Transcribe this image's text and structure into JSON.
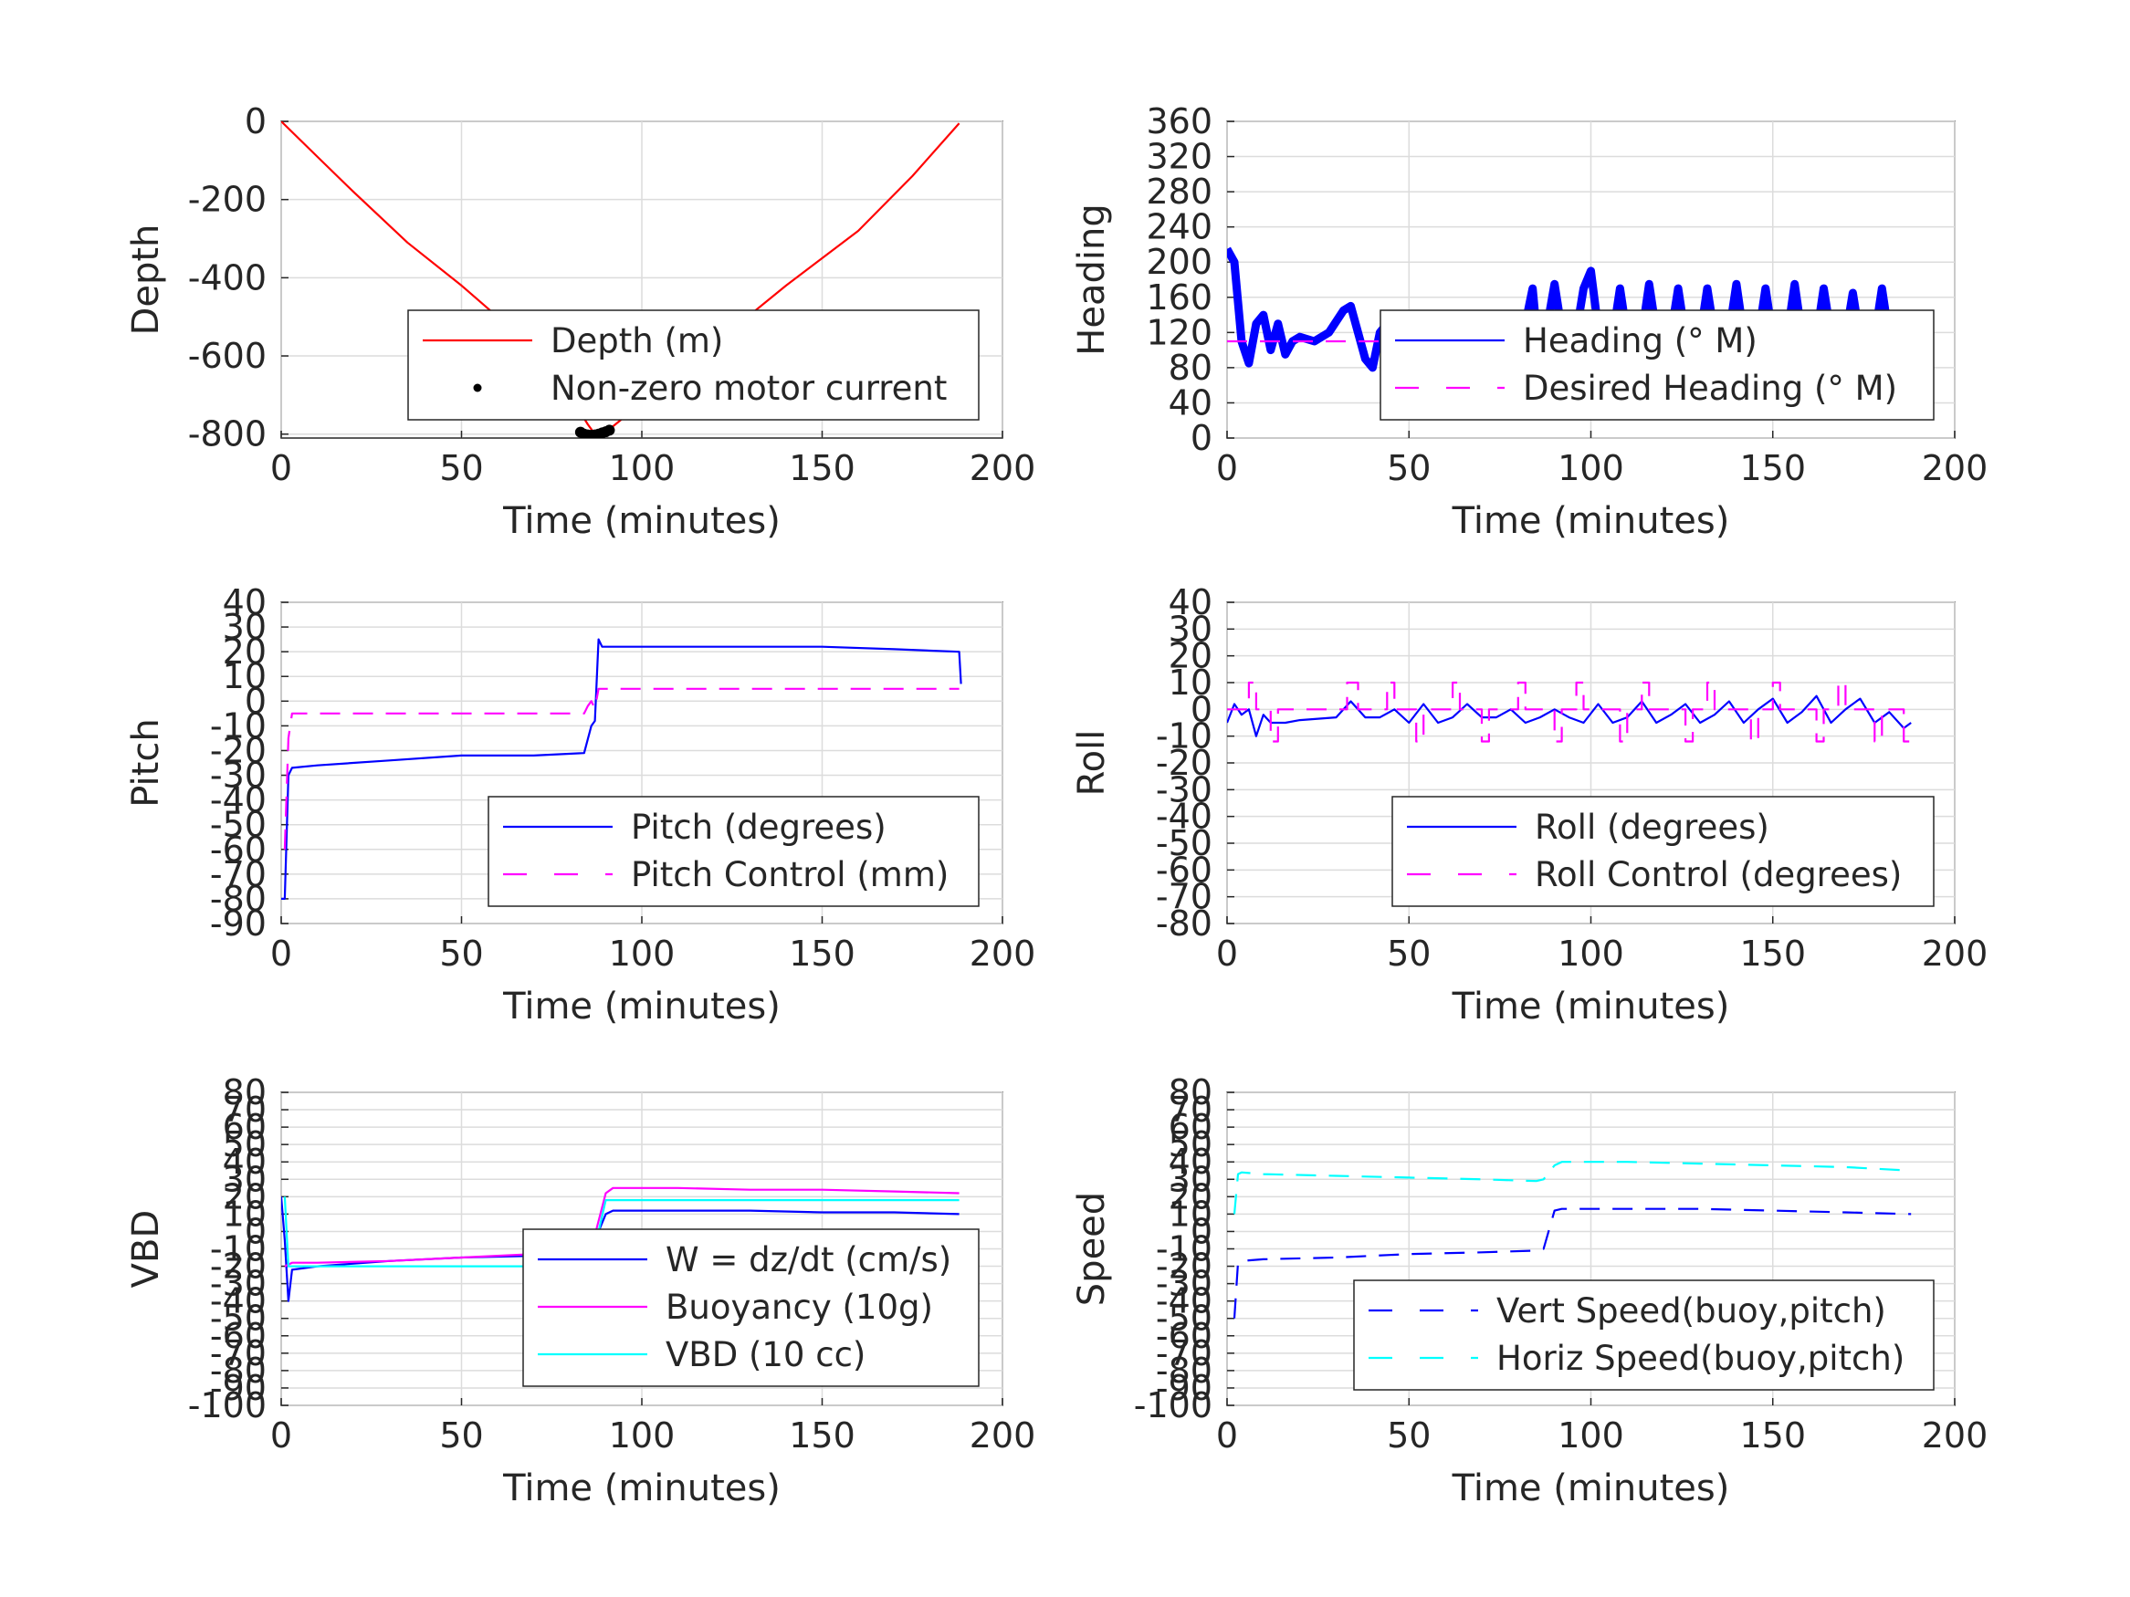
{
  "chart_data": [
    {
      "id": "depth",
      "type": "line",
      "xlabel": "Time (minutes)",
      "ylabel": "Depth",
      "xlim": [
        0,
        200
      ],
      "ylim": [
        -810,
        0
      ],
      "xticks": [
        0,
        50,
        100,
        150,
        200
      ],
      "yticks": [
        0,
        -200,
        -400,
        -600,
        -800
      ],
      "grid": true,
      "legend_position": "lower-right",
      "series": [
        {
          "name": "Depth (m)",
          "style": "solid",
          "color": "#ff0000",
          "x": [
            0,
            10,
            20,
            35,
            50,
            60,
            70,
            80,
            85,
            87,
            90,
            100,
            110,
            120,
            140,
            160,
            175,
            188
          ],
          "y": [
            0,
            -90,
            -180,
            -310,
            -420,
            -500,
            -590,
            -700,
            -775,
            -800,
            -795,
            -720,
            -650,
            -570,
            -420,
            -280,
            -140,
            -5
          ]
        },
        {
          "name": "Non-zero motor current",
          "style": "dots",
          "color": "#000000",
          "x": [
            83,
            84,
            85,
            86,
            87,
            88,
            89,
            90,
            91
          ],
          "y": [
            -795,
            -800,
            -802,
            -803,
            -802,
            -800,
            -797,
            -794,
            -790
          ]
        }
      ]
    },
    {
      "id": "heading",
      "type": "line",
      "xlabel": "Time (minutes)",
      "ylabel": "Heading",
      "xlim": [
        0,
        200
      ],
      "ylim": [
        0,
        360
      ],
      "xticks": [
        0,
        50,
        100,
        150,
        200
      ],
      "yticks": [
        0,
        40,
        80,
        120,
        160,
        200,
        240,
        280,
        320,
        360
      ],
      "grid": true,
      "legend_position": "center-right",
      "series": [
        {
          "name": "Heading (° M)",
          "style": "thick",
          "color": "#0000ff",
          "x": [
            0,
            2,
            4,
            6,
            8,
            10,
            12,
            14,
            16,
            18,
            20,
            24,
            28,
            32,
            34,
            38,
            40,
            42,
            44,
            48,
            52,
            54,
            58,
            62,
            64,
            66,
            68,
            72,
            76,
            80,
            84,
            86,
            90,
            94,
            98,
            100,
            104,
            108,
            112,
            116,
            120,
            124,
            128,
            132,
            136,
            140,
            144,
            148,
            152,
            156,
            160,
            164,
            168,
            172,
            176,
            180,
            184,
            188
          ],
          "y": [
            215,
            200,
            110,
            85,
            130,
            140,
            100,
            130,
            95,
            110,
            115,
            110,
            120,
            145,
            150,
            90,
            80,
            120,
            130,
            135,
            85,
            120,
            130,
            140,
            85,
            135,
            140,
            80,
            130,
            90,
            170,
            80,
            175,
            70,
            170,
            190,
            60,
            170,
            60,
            175,
            65,
            170,
            60,
            170,
            65,
            175,
            60,
            170,
            60,
            175,
            60,
            170,
            65,
            165,
            60,
            170,
            60,
            65
          ]
        },
        {
          "name": "Desired Heading (° M)",
          "style": "dashed",
          "color": "#ff00ff",
          "x": [
            0,
            188
          ],
          "y": [
            110,
            110
          ]
        }
      ]
    },
    {
      "id": "pitch",
      "type": "line",
      "xlabel": "Time (minutes)",
      "ylabel": "Pitch",
      "xlim": [
        0,
        200
      ],
      "ylim": [
        -90,
        40
      ],
      "xticks": [
        0,
        50,
        100,
        150,
        200
      ],
      "yticks": [
        -90,
        -80,
        -70,
        -60,
        -50,
        -40,
        -30,
        -20,
        -10,
        0,
        10,
        20,
        30,
        40
      ],
      "grid": true,
      "legend_position": "lower-right",
      "series": [
        {
          "name": "Pitch (degrees)",
          "style": "solid",
          "color": "#0000ff",
          "x": [
            0,
            1,
            2,
            3,
            10,
            30,
            50,
            70,
            84,
            86,
            87,
            88,
            89,
            90,
            110,
            130,
            150,
            170,
            188,
            188.5
          ],
          "y": [
            -80,
            -80,
            -30,
            -27,
            -26,
            -24,
            -22,
            -22,
            -21,
            -10,
            -8,
            25,
            22,
            22,
            22,
            22,
            22,
            21,
            20,
            7
          ]
        },
        {
          "name": "Pitch Control (mm)",
          "style": "dashed",
          "color": "#ff00ff",
          "x": [
            1,
            2,
            3,
            84,
            85,
            86,
            87,
            88,
            188
          ],
          "y": [
            -60,
            -15,
            -5,
            -5,
            -2,
            0,
            -3,
            5,
            5
          ]
        }
      ]
    },
    {
      "id": "roll",
      "type": "line",
      "xlabel": "Time (minutes)",
      "ylabel": "Roll",
      "xlim": [
        0,
        200
      ],
      "ylim": [
        -80,
        40
      ],
      "xticks": [
        0,
        50,
        100,
        150,
        200
      ],
      "yticks": [
        -80,
        -70,
        -60,
        -50,
        -40,
        -30,
        -20,
        -10,
        0,
        10,
        20,
        30,
        40
      ],
      "grid": true,
      "legend_position": "lower-right",
      "series": [
        {
          "name": "Roll (degrees)",
          "style": "solid",
          "color": "#0000ff",
          "x": [
            0,
            2,
            4,
            6,
            8,
            10,
            12,
            16,
            20,
            30,
            34,
            38,
            42,
            46,
            50,
            54,
            58,
            62,
            66,
            70,
            74,
            78,
            82,
            86,
            90,
            94,
            98,
            102,
            106,
            110,
            114,
            118,
            122,
            126,
            130,
            134,
            138,
            142,
            146,
            150,
            154,
            158,
            162,
            166,
            170,
            174,
            178,
            182,
            186,
            188
          ],
          "y": [
            -5,
            2,
            -2,
            0,
            -10,
            -2,
            -5,
            -5,
            -4,
            -3,
            3,
            -3,
            -3,
            0,
            -5,
            2,
            -5,
            -3,
            2,
            -3,
            -3,
            0,
            -5,
            -3,
            0,
            -3,
            -5,
            2,
            -5,
            -3,
            3,
            -5,
            -2,
            2,
            -5,
            -2,
            3,
            -5,
            0,
            4,
            -5,
            -1,
            5,
            -5,
            0,
            4,
            -5,
            -1,
            -7,
            -5
          ]
        },
        {
          "name": "Roll Control (degrees)",
          "style": "dashed",
          "color": "#ff00ff",
          "x": [
            0,
            6,
            6,
            8,
            8,
            12,
            12,
            14,
            14,
            33,
            33,
            36,
            36,
            44,
            44,
            46,
            46,
            52,
            52,
            54,
            54,
            62,
            62,
            64,
            64,
            70,
            70,
            72,
            72,
            80,
            80,
            82,
            82,
            90,
            90,
            92,
            92,
            96,
            96,
            98,
            98,
            108,
            108,
            110,
            110,
            114,
            114,
            116,
            116,
            126,
            126,
            128,
            128,
            132,
            132,
            134,
            134,
            144,
            144,
            146,
            146,
            150,
            150,
            152,
            152,
            162,
            162,
            164,
            164,
            168,
            168,
            170,
            170,
            178,
            178,
            180,
            180,
            186,
            186,
            188
          ],
          "y": [
            0,
            0,
            10,
            10,
            0,
            0,
            -12,
            -12,
            0,
            0,
            10,
            10,
            0,
            0,
            10,
            10,
            0,
            0,
            -12,
            -12,
            0,
            0,
            10,
            10,
            0,
            0,
            -12,
            -12,
            0,
            0,
            10,
            10,
            0,
            0,
            -12,
            -12,
            0,
            0,
            10,
            10,
            0,
            0,
            -12,
            -12,
            0,
            0,
            10,
            10,
            0,
            0,
            -12,
            -12,
            0,
            0,
            10,
            10,
            0,
            0,
            -12,
            -12,
            0,
            0,
            10,
            10,
            0,
            0,
            -12,
            -12,
            0,
            0,
            10,
            10,
            0,
            0,
            -12,
            -12,
            0,
            0,
            -12,
            -12
          ]
        }
      ]
    },
    {
      "id": "vbd",
      "type": "line",
      "xlabel": "Time (minutes)",
      "ylabel": "VBD",
      "xlim": [
        0,
        200
      ],
      "ylim": [
        -100,
        80
      ],
      "xticks": [
        0,
        50,
        100,
        150,
        200
      ],
      "yticks": [
        -100,
        -90,
        -80,
        -70,
        -60,
        -50,
        -40,
        -30,
        -20,
        -10,
        0,
        10,
        20,
        30,
        40,
        50,
        60,
        70,
        80
      ],
      "yticklabels_shown": [
        "-100",
        "-90",
        "-80",
        "-70",
        "-60",
        "-50",
        "-40",
        "-30",
        "-20",
        "-10",
        "0",
        "10",
        "20",
        "30",
        "40",
        "50",
        "60",
        "70",
        "80"
      ],
      "grid": true,
      "legend_position": "lower-right",
      "series": [
        {
          "name": "W = dz/dt (cm/s)",
          "style": "solid",
          "color": "#0000ff",
          "x": [
            0,
            1,
            2,
            3,
            10,
            30,
            50,
            70,
            84,
            86,
            90,
            92,
            110,
            130,
            150,
            170,
            188
          ],
          "y": [
            20,
            -5,
            -40,
            -22,
            -20,
            -17,
            -15,
            -14,
            -13,
            -10,
            10,
            12,
            12,
            12,
            11,
            11,
            10
          ]
        },
        {
          "name": "Buoyancy (10g)",
          "style": "solid",
          "color": "#ff00ff",
          "x": [
            1,
            3,
            10,
            30,
            50,
            70,
            84,
            86,
            90,
            92,
            110,
            130,
            150,
            170,
            188
          ],
          "y": [
            -20,
            -18,
            -18,
            -17,
            -15,
            -13,
            -12,
            -10,
            22,
            25,
            25,
            24,
            24,
            23,
            22
          ]
        },
        {
          "name": "VBD (10 cc)",
          "style": "solid",
          "color": "#00ffff",
          "x": [
            1,
            2,
            3,
            10,
            30,
            50,
            70,
            84,
            86,
            90,
            92,
            110,
            130,
            150,
            170,
            188
          ],
          "y": [
            20,
            -20,
            -20,
            -20,
            -20,
            -20,
            -20,
            -20,
            -18,
            18,
            18,
            18,
            18,
            18,
            18,
            18
          ]
        }
      ]
    },
    {
      "id": "speed",
      "type": "line",
      "xlabel": "Time (minutes)",
      "ylabel": "Speed",
      "xlim": [
        0,
        200
      ],
      "ylim": [
        -100,
        80
      ],
      "xticks": [
        0,
        50,
        100,
        150,
        200
      ],
      "yticks": [
        -100,
        -90,
        -80,
        -70,
        -60,
        -50,
        -40,
        -30,
        -20,
        -10,
        0,
        10,
        20,
        30,
        40,
        50,
        60,
        70,
        80
      ],
      "yticklabels_shown": [
        "-100",
        "-90",
        "-80",
        "-70",
        "-60",
        "-50",
        "-40",
        "-30",
        "-20",
        "-10",
        "0",
        "10",
        "20",
        "30",
        "40",
        "50",
        "60",
        "70",
        "80"
      ],
      "grid": true,
      "legend_position": "lower-right",
      "series": [
        {
          "name": "Vert Speed(buoy,pitch)",
          "style": "dashed",
          "color": "#0000ff",
          "x": [
            2,
            3,
            4,
            10,
            30,
            50,
            70,
            85,
            87,
            90,
            92,
            110,
            130,
            150,
            170,
            188
          ],
          "y": [
            -50,
            -18,
            -17,
            -16,
            -15,
            -13,
            -12,
            -11,
            -10,
            12,
            13,
            13,
            13,
            12,
            11,
            10
          ]
        },
        {
          "name": "Horiz Speed(buoy,pitch)",
          "style": "dashed",
          "color": "#00ffff",
          "x": [
            2,
            3,
            4,
            10,
            30,
            50,
            70,
            85,
            87,
            90,
            92,
            110,
            130,
            150,
            170,
            188
          ],
          "y": [
            10,
            33,
            34,
            33,
            32,
            31,
            30,
            29,
            30,
            38,
            40,
            40,
            39,
            38,
            37,
            35
          ]
        }
      ]
    }
  ]
}
